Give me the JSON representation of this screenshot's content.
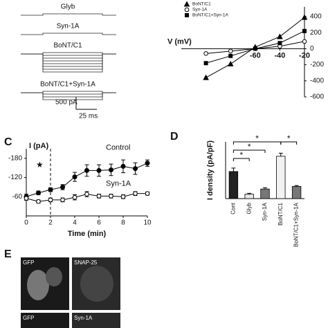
{
  "panel_labels": {
    "c": "C",
    "d": "D",
    "e": "E"
  },
  "traces": {
    "labels": [
      "Glyb",
      "Syn-1A",
      "BoNT/C1",
      "BoNT/C1+Syn-1A"
    ],
    "scale_current": "500 pA",
    "scale_time": "25 ms"
  },
  "chart_data": [
    {
      "type": "line",
      "xlabel": "V (mV)",
      "x": [
        -100,
        -80,
        -60,
        -40,
        -20
      ],
      "series": [
        {
          "name": "BoNT/C1",
          "color": "#000000",
          "marker": "triangle",
          "values": [
            -360,
            -190,
            20,
            150,
            390
          ]
        },
        {
          "name": "Syn-1A",
          "color": "#000000",
          "marker": "circle",
          "values": [
            -60,
            -30,
            0,
            30,
            90
          ]
        },
        {
          "name": "BoNT/C1+Syn-1A",
          "color": "#000000",
          "marker": "square",
          "values": [
            -180,
            -90,
            0,
            70,
            220
          ]
        }
      ],
      "xlim": [
        -120,
        -20
      ],
      "ylim": [
        -600,
        520
      ],
      "xticks": [
        -60,
        -40,
        -20
      ],
      "yticks": [
        400,
        200,
        0,
        -200,
        -400,
        -600
      ],
      "legend": "upper left"
    },
    {
      "type": "line",
      "ylabel": "I (pA)",
      "xlabel": "Time (min)",
      "x": [
        0,
        1,
        2,
        3,
        4,
        5,
        6,
        7,
        8,
        9,
        10
      ],
      "series": [
        {
          "name": "Control",
          "color": "#000000",
          "marker": "filled",
          "values": [
            -60,
            -72,
            -82,
            -90,
            -122,
            -142,
            -142,
            -144,
            -155,
            -148,
            -165
          ],
          "errors": [
            8,
            6,
            6,
            8,
            14,
            18,
            18,
            18,
            20,
            18,
            10
          ]
        },
        {
          "name": "Syn-1A",
          "color": "#000000",
          "marker": "open",
          "values": [
            -55,
            -45,
            -50,
            -50,
            -58,
            -68,
            -62,
            -62,
            -60,
            -70,
            -70
          ],
          "errors": [
            6,
            5,
            6,
            6,
            8,
            8,
            6,
            6,
            6,
            6,
            5
          ]
        }
      ],
      "xlim": [
        0,
        10
      ],
      "ylim": [
        0,
        -210
      ],
      "xticks": [
        0,
        2,
        4,
        6,
        8,
        10
      ],
      "yticks": [
        -180,
        -120,
        -60
      ],
      "dashed_line_x": 2,
      "annotations": [
        "★"
      ]
    },
    {
      "type": "bar",
      "ylabel": "I density (pA/pF)",
      "categories": [
        "Cont",
        "Glyb",
        "Syn-1A",
        "BoNT/C1",
        "BoNT/C1+Syn-1A"
      ],
      "values": [
        62,
        10,
        22,
        97,
        28
      ],
      "errors": [
        8,
        2,
        3,
        7,
        2
      ],
      "colors": [
        "#222222",
        "#e6e6e6",
        "#777777",
        "#f2f2f2",
        "#777777"
      ],
      "ylim": [
        0,
        130
      ],
      "annotations": [
        "*",
        "*",
        "*",
        "*"
      ]
    }
  ],
  "images": {
    "labels": [
      "GFP",
      "SNAP-25",
      "GFP",
      "Syn-1A"
    ]
  }
}
